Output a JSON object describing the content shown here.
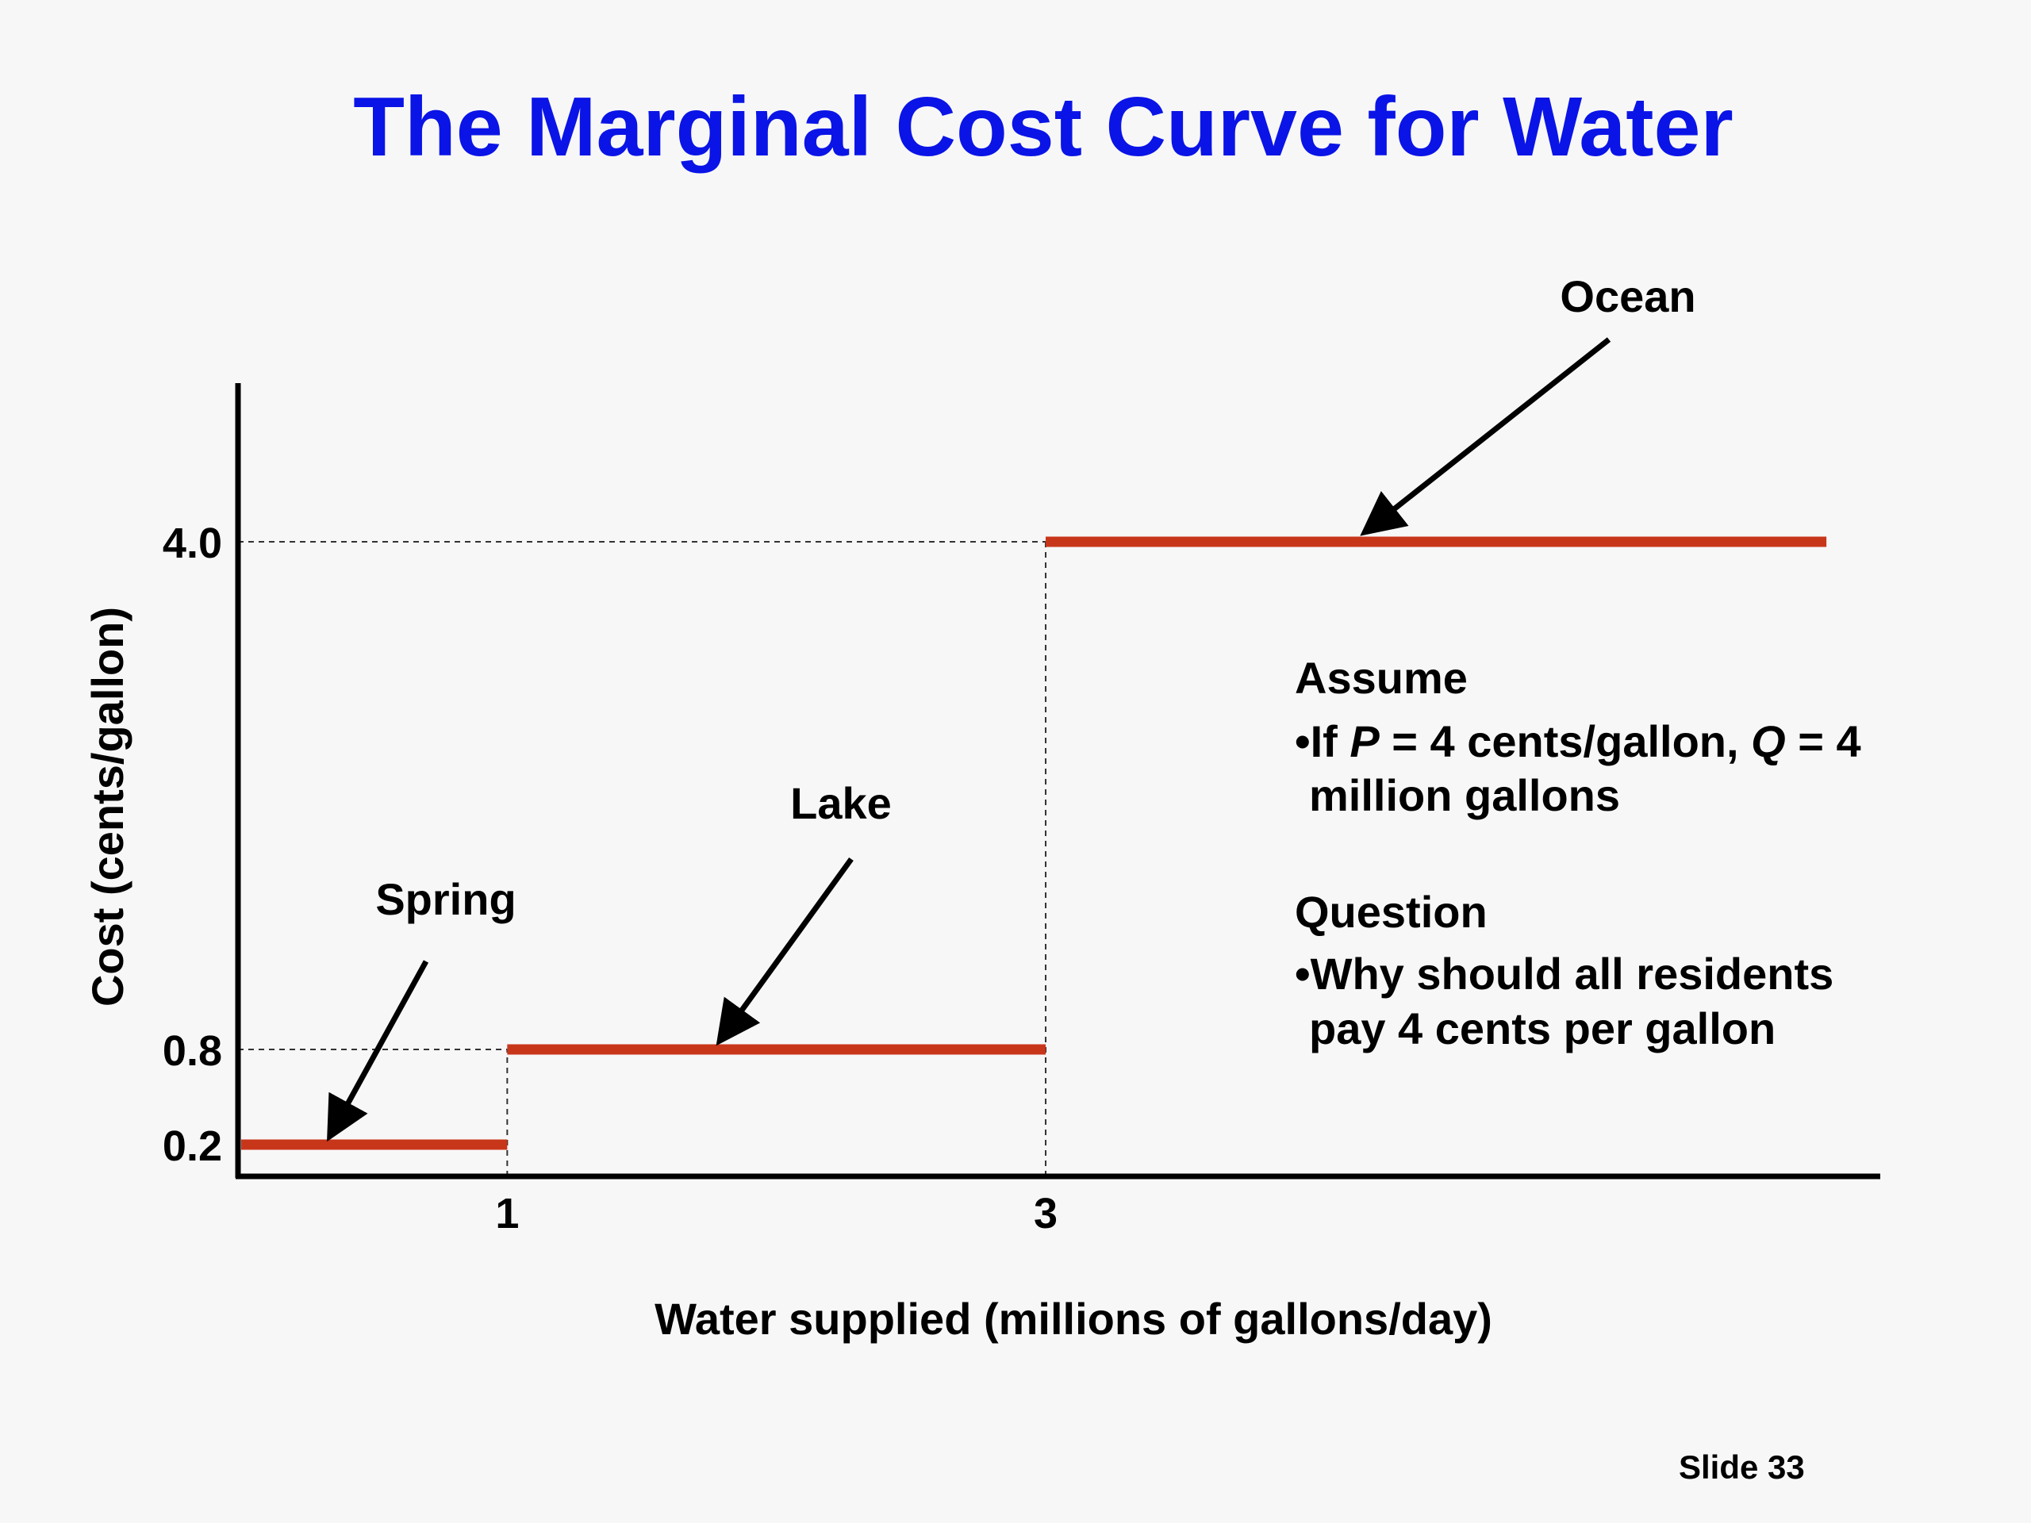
{
  "slide": {
    "title": "The Marginal Cost Curve for Water",
    "number_label": "Slide 33"
  },
  "chart_data": {
    "type": "line",
    "subtype": "step",
    "title": "The Marginal Cost Curve for Water",
    "xlabel": "Water supplied (millions of gallons/day)",
    "ylabel": "Cost (cents/gallon)",
    "xlim": [
      0,
      6.1
    ],
    "ylim": [
      0,
      5
    ],
    "x_ticks": [
      1,
      3
    ],
    "x_tick_labels": [
      "1",
      "3"
    ],
    "y_ticks": [
      0.2,
      0.8,
      4.0
    ],
    "y_tick_labels": [
      "0.2",
      "0.8",
      "4.0"
    ],
    "grid": false,
    "series": [
      {
        "segments": [
          {
            "name": "Spring",
            "x_start": 0,
            "x_end": 1,
            "y": 0.2
          },
          {
            "name": "Lake",
            "x_start": 1,
            "x_end": 3,
            "y": 0.8
          },
          {
            "name": "Ocean",
            "x_start": 3,
            "x_end": 5.9,
            "y": 4.0
          }
        ],
        "color": "#c8361a"
      }
    ],
    "annotations": [
      {
        "label": "Spring",
        "points_to": {
          "x": 0.35,
          "y": 0.2
        }
      },
      {
        "label": "Lake",
        "points_to": {
          "x": 1.8,
          "y": 0.8
        }
      },
      {
        "label": "Ocean",
        "points_to": {
          "x": 4.2,
          "y": 4.0
        }
      }
    ],
    "reference_lines": [
      {
        "axis": "y",
        "value": 4.0,
        "from_x": 0,
        "to_x": 3
      },
      {
        "axis": "y",
        "value": 0.8,
        "from_x": 0,
        "to_x": 1
      },
      {
        "axis": "x",
        "value": 1,
        "from_y": 0,
        "to_y": 0.8
      },
      {
        "axis": "x",
        "value": 3,
        "from_y": 0,
        "to_y": 4.0
      }
    ]
  },
  "notes": {
    "heading1": "Assume",
    "bullet1_prefix": "•If ",
    "bullet1_p": "P",
    "bullet1_mid": " = 4 cents/gallon, ",
    "bullet1_q": "Q",
    "bullet1_end": " = 4",
    "bullet1_line2": "million gallons",
    "heading2": "Question",
    "bullet2_line1": "•Why should all residents",
    "bullet2_line2": "pay 4 cents per gallon"
  }
}
